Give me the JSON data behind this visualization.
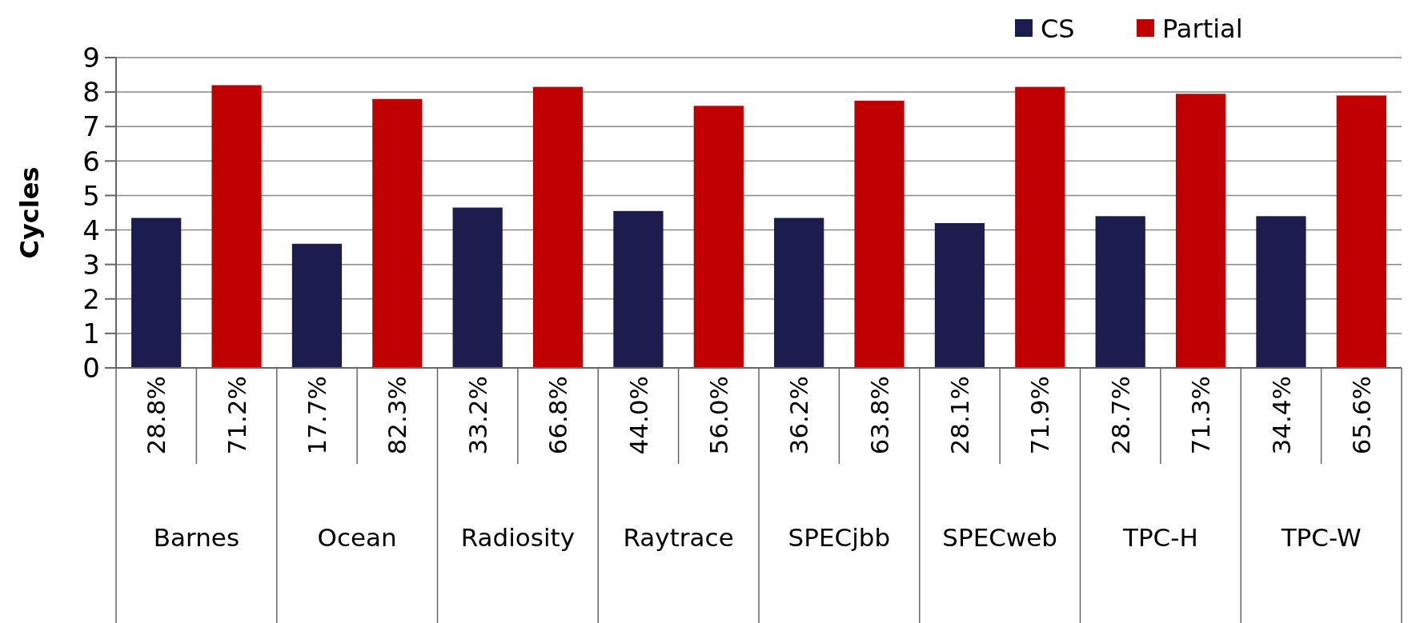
{
  "chart_data": {
    "type": "bar",
    "ylabel": "Cycles",
    "categories": [
      "28.8%",
      "71.2%",
      "17.7%",
      "82.3%",
      "33.2%",
      "66.8%",
      "44.0%",
      "56.0%",
      "36.2%",
      "63.8%",
      "28.1%",
      "71.9%",
      "28.7%",
      "71.3%",
      "34.4%",
      "65.6%"
    ],
    "annotations": [
      "Barnes",
      "Ocean",
      "Radiosity",
      "Raytrace",
      "SPECjbb",
      "SPECweb",
      "TPC-H",
      "TPC-W"
    ],
    "series": [
      {
        "name": "CS",
        "color": "#1c1c4e",
        "values": [
          4.35,
          null,
          3.6,
          null,
          4.65,
          null,
          4.55,
          null,
          4.35,
          null,
          4.2,
          null,
          4.4,
          null,
          4.4,
          null
        ]
      },
      {
        "name": "Partial",
        "color": "#c00000",
        "values": [
          null,
          8.2,
          null,
          7.8,
          null,
          8.15,
          null,
          7.6,
          null,
          7.75,
          null,
          8.15,
          null,
          7.95,
          null,
          7.9
        ]
      }
    ],
    "ylim": [
      0,
      9
    ],
    "yticks": [
      0,
      1,
      2,
      3,
      4,
      5,
      6,
      7,
      8,
      9
    ],
    "grid": "y",
    "legend": "top right"
  }
}
